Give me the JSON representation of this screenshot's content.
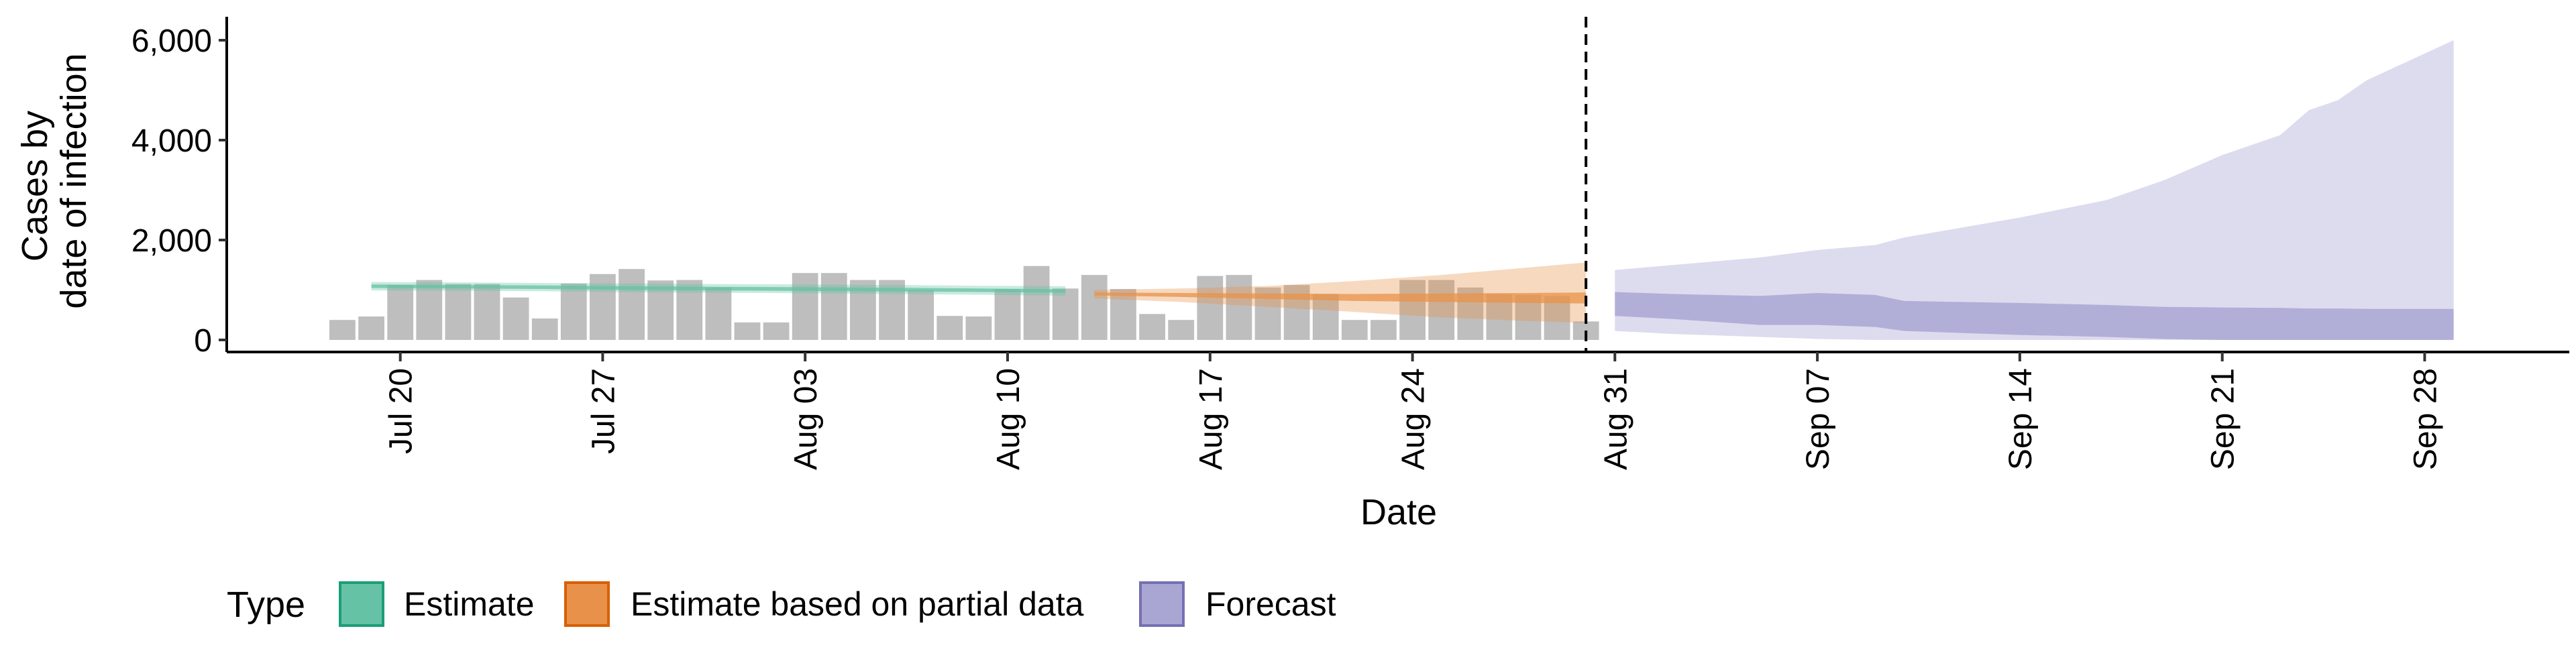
{
  "chart_data": {
    "type": "bar",
    "xlabel": "Date",
    "ylabel_lines": [
      "Cases by",
      "date of infection"
    ],
    "ylim": [
      0,
      6200
    ],
    "x_domain": [
      "2020-07-14",
      "2020-10-03"
    ],
    "grid": false,
    "x_ticks": [
      {
        "date": "2020-07-20",
        "label": "Jul 20"
      },
      {
        "date": "2020-07-27",
        "label": "Jul 27"
      },
      {
        "date": "2020-08-03",
        "label": "Aug 03"
      },
      {
        "date": "2020-08-10",
        "label": "Aug 10"
      },
      {
        "date": "2020-08-17",
        "label": "Aug 17"
      },
      {
        "date": "2020-08-24",
        "label": "Aug 24"
      },
      {
        "date": "2020-08-31",
        "label": "Aug 31"
      },
      {
        "date": "2020-09-07",
        "label": "Sep 07"
      },
      {
        "date": "2020-09-14",
        "label": "Sep 14"
      },
      {
        "date": "2020-09-21",
        "label": "Sep 21"
      },
      {
        "date": "2020-09-28",
        "label": "Sep 28"
      }
    ],
    "y_ticks": [
      {
        "value": 0,
        "label": "0"
      },
      {
        "value": 2000,
        "label": "2,000"
      },
      {
        "value": 4000,
        "label": "4,000"
      },
      {
        "value": 6000,
        "label": "6,000"
      }
    ],
    "forecast_date": "2020-08-30",
    "observed_cases": {
      "color": "#bebebe",
      "dates": [
        "2020-07-18",
        "2020-07-19",
        "2020-07-20",
        "2020-07-21",
        "2020-07-22",
        "2020-07-23",
        "2020-07-24",
        "2020-07-25",
        "2020-07-26",
        "2020-07-27",
        "2020-07-28",
        "2020-07-29",
        "2020-07-30",
        "2020-07-31",
        "2020-08-01",
        "2020-08-02",
        "2020-08-03",
        "2020-08-04",
        "2020-08-05",
        "2020-08-06",
        "2020-08-07",
        "2020-08-08",
        "2020-08-09",
        "2020-08-10",
        "2020-08-11",
        "2020-08-12",
        "2020-08-13",
        "2020-08-14",
        "2020-08-15",
        "2020-08-16",
        "2020-08-17",
        "2020-08-18",
        "2020-08-19",
        "2020-08-20",
        "2020-08-21",
        "2020-08-22",
        "2020-08-23",
        "2020-08-24",
        "2020-08-25",
        "2020-08-26",
        "2020-08-27",
        "2020-08-28",
        "2020-08-29",
        "2020-08-30"
      ],
      "values": [
        400,
        470,
        1100,
        1200,
        1120,
        1120,
        850,
        430,
        1130,
        1320,
        1420,
        1190,
        1200,
        1050,
        350,
        350,
        1340,
        1340,
        1200,
        1200,
        1000,
        480,
        470,
        1020,
        1480,
        1030,
        1300,
        1020,
        520,
        400,
        1280,
        1300,
        1050,
        1100,
        920,
        400,
        400,
        1200,
        1200,
        1050,
        920,
        900,
        880,
        370
      ]
    },
    "series": [
      {
        "name": "Estimate",
        "color": "#1b9e77",
        "fill": "#66c2a5",
        "dates": [
          "2020-07-19",
          "2020-07-22",
          "2020-07-25",
          "2020-07-28",
          "2020-07-31",
          "2020-08-03",
          "2020-08-06",
          "2020-08-09",
          "2020-08-12"
        ],
        "inner_low": [
          1040,
          1030,
          1020,
          1000,
          990,
          980,
          970,
          960,
          945
        ],
        "inner_high": [
          1110,
          1100,
          1090,
          1075,
          1065,
          1055,
          1045,
          1030,
          1015
        ],
        "outer_low": [
          990,
          985,
          975,
          955,
          945,
          935,
          920,
          905,
          885
        ],
        "outer_high": [
          1160,
          1150,
          1140,
          1130,
          1120,
          1110,
          1100,
          1085,
          1075
        ]
      },
      {
        "name": "Estimate based on partial data",
        "color": "#d95f02",
        "fill": "#e8914a",
        "dates": [
          "2020-08-13",
          "2020-08-16",
          "2020-08-19",
          "2020-08-22",
          "2020-08-25",
          "2020-08-28",
          "2020-08-30"
        ],
        "inner_low": [
          890,
          860,
          820,
          780,
          760,
          740,
          730
        ],
        "inner_high": [
          950,
          940,
          930,
          920,
          930,
          940,
          950
        ],
        "outer_low": [
          830,
          760,
          660,
          560,
          450,
          380,
          340
        ],
        "outer_high": [
          1000,
          1030,
          1080,
          1180,
          1300,
          1450,
          1550
        ]
      },
      {
        "name": "Forecast",
        "color": "#7570b3",
        "fill": "#a9a6d4",
        "dates": [
          "2020-08-31",
          "2020-09-02",
          "2020-09-05",
          "2020-09-07",
          "2020-09-09",
          "2020-09-10",
          "2020-09-14",
          "2020-09-17",
          "2020-09-19",
          "2020-09-21",
          "2020-09-23",
          "2020-09-24",
          "2020-09-25",
          "2020-09-26",
          "2020-09-29"
        ],
        "inner_low": [
          480,
          420,
          300,
          300,
          260,
          180,
          100,
          60,
          20,
          0,
          0,
          0,
          0,
          0,
          0
        ],
        "inner_high": [
          960,
          920,
          880,
          940,
          900,
          780,
          740,
          700,
          660,
          650,
          640,
          630,
          630,
          620,
          620
        ],
        "outer_low": [
          180,
          120,
          60,
          20,
          0,
          0,
          0,
          0,
          0,
          0,
          0,
          0,
          0,
          0,
          0
        ],
        "outer_high": [
          1400,
          1500,
          1650,
          1800,
          1900,
          2050,
          2450,
          2800,
          3200,
          3700,
          4100,
          4600,
          4800,
          5200,
          6000
        ]
      }
    ]
  },
  "legend": {
    "title": "Type",
    "items": [
      {
        "label": "Estimate",
        "fill": "#66c2a5",
        "stroke": "#1b9e77"
      },
      {
        "label": "Estimate based on partial data",
        "fill": "#e8914a",
        "stroke": "#d95f02"
      },
      {
        "label": "Forecast",
        "fill": "#a9a6d4",
        "stroke": "#7570b3"
      }
    ]
  }
}
